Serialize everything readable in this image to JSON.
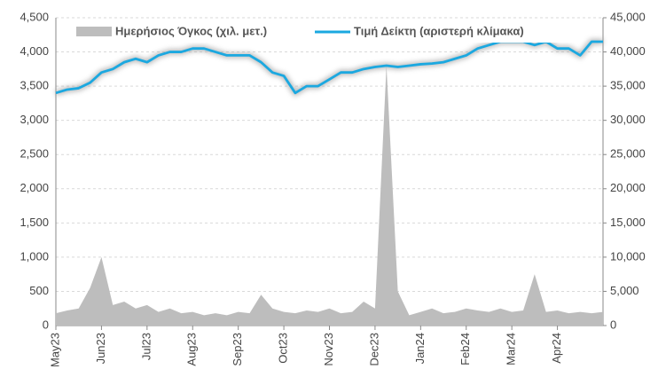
{
  "chart_data": {
    "type": "line",
    "categories": [
      "May23",
      null,
      null,
      null,
      "Jun23",
      null,
      null,
      null,
      "Jul23",
      null,
      null,
      null,
      "Aug23",
      null,
      null,
      null,
      "Sep23",
      null,
      null,
      null,
      "Oct23",
      null,
      null,
      null,
      "Nov23",
      null,
      null,
      null,
      "Dec23",
      null,
      null,
      null,
      "Jan24",
      null,
      null,
      null,
      "Feb24",
      null,
      null,
      null,
      "Mar24",
      null,
      null,
      null,
      "Apr24",
      null,
      null,
      null,
      null
    ],
    "series": [
      {
        "name": "Ημερήσιος Όγκος (χιλ. μετ.)",
        "color": "#bdbdbd",
        "axis": "y2",
        "kind": "area",
        "values": [
          1800,
          2200,
          2500,
          5500,
          10000,
          3000,
          3500,
          2500,
          3000,
          2000,
          2500,
          1800,
          2000,
          1500,
          1800,
          1500,
          2000,
          1800,
          4500,
          2500,
          2000,
          1800,
          2200,
          2000,
          2500,
          1800,
          2000,
          3500,
          2500,
          38000,
          5000,
          1500,
          2000,
          2500,
          1800,
          2000,
          2500,
          2200,
          2000,
          2500,
          2000,
          2200,
          7500,
          2000,
          2200,
          1800,
          2000,
          1800,
          2000
        ]
      },
      {
        "name": "Τιμή Δείκτη (αριστερή κλίμακα)",
        "color": "#1ba8e0",
        "axis": "y",
        "kind": "line",
        "values": [
          3400,
          3450,
          3470,
          3550,
          3700,
          3750,
          3850,
          3900,
          3850,
          3950,
          4000,
          4000,
          4050,
          4050,
          4000,
          3950,
          3950,
          3950,
          3850,
          3700,
          3650,
          3400,
          3500,
          3500,
          3600,
          3700,
          3700,
          3750,
          3780,
          3800,
          3780,
          3800,
          3820,
          3830,
          3850,
          3900,
          3950,
          4050,
          4100,
          4150,
          4150,
          4150,
          4100,
          4150,
          4050,
          4050,
          3950,
          4150,
          4150
        ]
      }
    ],
    "ylim": [
      0,
      4500
    ],
    "yticks": [
      0,
      500,
      {
        "value": 1000,
        "label": "1,000"
      },
      {
        "value": 1500,
        "label": "1,500"
      },
      {
        "value": 2000,
        "label": "2,000"
      },
      {
        "value": 2500,
        "label": "2,500"
      },
      {
        "value": 3000,
        "label": "3,000"
      },
      {
        "value": 3500,
        "label": "3,500"
      },
      {
        "value": 4000,
        "label": "4,000"
      },
      {
        "value": 4500,
        "label": "4,500"
      }
    ],
    "y2lim": [
      0,
      45000
    ],
    "y2ticks": [
      0,
      {
        "value": 5000,
        "label": "5,000"
      },
      {
        "value": 10000,
        "label": "10,000"
      },
      {
        "value": 15000,
        "label": "15,000"
      },
      {
        "value": 20000,
        "label": "20,000"
      },
      {
        "value": 25000,
        "label": "25,000"
      },
      {
        "value": 30000,
        "label": "30,000"
      },
      {
        "value": 35000,
        "label": "35,000"
      },
      {
        "value": 40000,
        "label": "40,000"
      },
      {
        "value": 45000,
        "label": "45,000"
      }
    ],
    "grid": true,
    "legend": "top"
  }
}
